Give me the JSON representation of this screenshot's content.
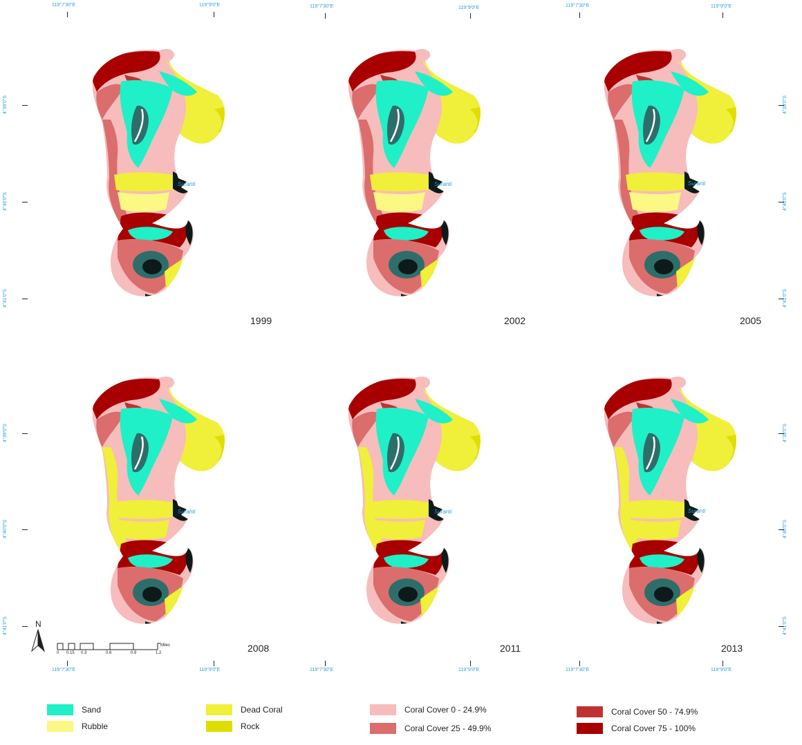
{
  "coords": {
    "lon_a": "119°7'30\"E",
    "lon_b": "119°9'0\"E",
    "lat_a": "4°39'0\"S",
    "lat_b": "4°40'0\"S",
    "lat_c": "4°41'0\"S"
  },
  "place_label": "Suranti",
  "panels": [
    {
      "year": "1999"
    },
    {
      "year": "2002"
    },
    {
      "year": "2005"
    },
    {
      "year": "2008"
    },
    {
      "year": "2011"
    },
    {
      "year": "2013"
    }
  ],
  "north_label": "N",
  "scale": {
    "ticks": [
      "0",
      "0.15",
      "0.3",
      "0.6",
      "0.9",
      "1.2"
    ],
    "unit": "Miles"
  },
  "legend": [
    {
      "label": "Sand",
      "color": "#1ff0c8"
    },
    {
      "label": "Rubble",
      "color": "#fbf884"
    },
    {
      "label": "Dead Coral",
      "color": "#f0ef3a"
    },
    {
      "label": "Rock",
      "color": "#dede00"
    },
    {
      "label": "Coral Cover 0 - 24.9%",
      "color": "#f7bcbc"
    },
    {
      "label": "Coral Cover 25 - 49.9%",
      "color": "#db6d6d"
    },
    {
      "label": "Coral Cover 50 - 74.9%",
      "color": "#c03232"
    },
    {
      "label": "Coral Cover 75 - 100%",
      "color": "#a80000"
    }
  ],
  "colors": {
    "deep": "#0e1a1a",
    "seagrass": "#2e6e6a",
    "coord_text": "#2a9fd6"
  }
}
